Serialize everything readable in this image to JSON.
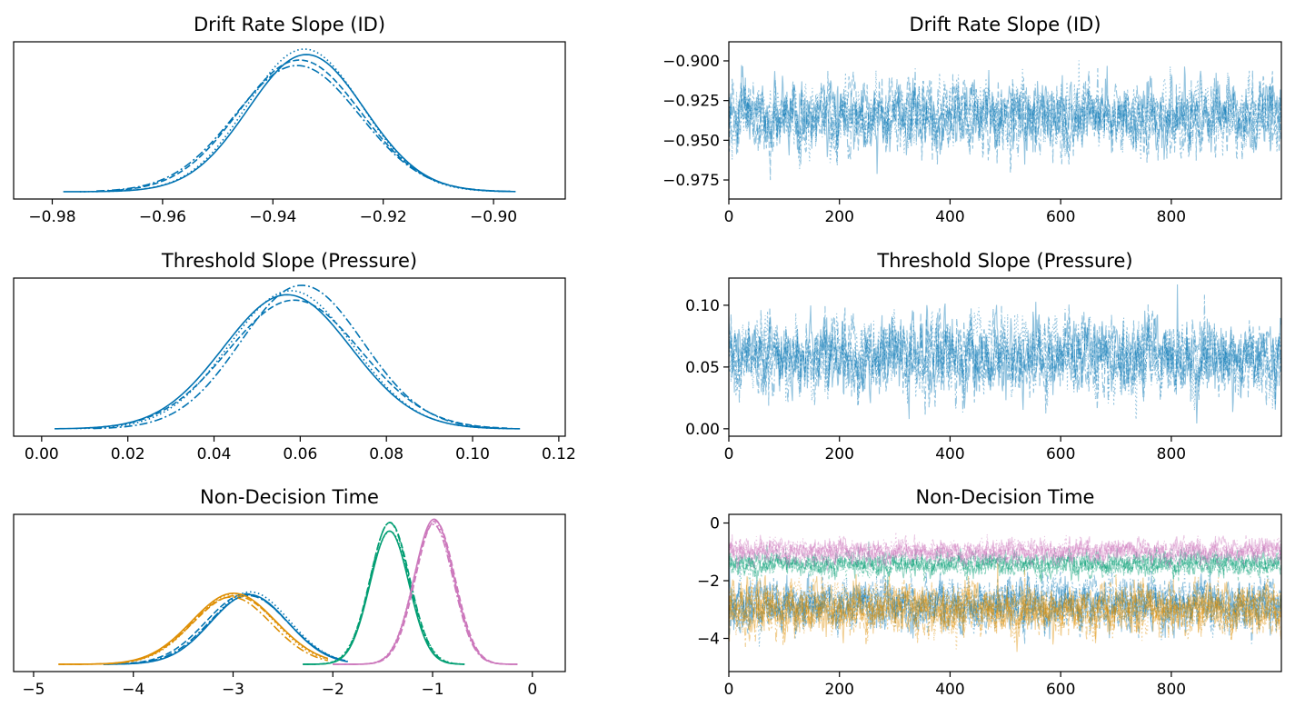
{
  "chart_data": [
    {
      "type": "line",
      "kind": "kde",
      "title": "Drift Rate Slope (ID)",
      "xlim": [
        -0.987,
        -0.887
      ],
      "xticks": [
        -0.98,
        -0.96,
        -0.94,
        -0.92,
        -0.9
      ],
      "xtick_labels": [
        "−0.98",
        "−0.96",
        "−0.94",
        "−0.92",
        "−0.90"
      ],
      "y_axis_visible": false,
      "series": [
        {
          "color": "#0173b2",
          "mean": -0.9345,
          "sd": 0.0105,
          "range": [
            -0.978,
            -0.896
          ],
          "peak_scale": 1.0
        },
        {
          "color": "#0173b2",
          "mean": -0.935,
          "sd": 0.011,
          "range": [
            -0.97,
            -0.897
          ],
          "peak_scale": 0.96
        },
        {
          "color": "#0173b2",
          "mean": -0.934,
          "sd": 0.01,
          "range": [
            -0.975,
            -0.898
          ],
          "peak_scale": 1.04
        },
        {
          "color": "#0173b2",
          "mean": -0.9355,
          "sd": 0.0115,
          "range": [
            -0.972,
            -0.897
          ],
          "peak_scale": 0.92
        }
      ]
    },
    {
      "type": "line",
      "kind": "trace",
      "title": "Drift Rate Slope (ID)",
      "xlim": [
        0,
        999
      ],
      "ylim": [
        -0.987,
        -0.888
      ],
      "xticks": [
        0,
        200,
        400,
        600,
        800
      ],
      "xtick_labels": [
        "0",
        "200",
        "400",
        "600",
        "800"
      ],
      "yticks": [
        -0.975,
        -0.95,
        -0.925,
        -0.9
      ],
      "ytick_labels": [
        "−0.975",
        "−0.950",
        "−0.925",
        "−0.900"
      ],
      "draws": 1000,
      "series": [
        {
          "color": "#0173b2",
          "mean": -0.935,
          "sd": 0.0105,
          "chains": 4
        }
      ]
    },
    {
      "type": "line",
      "kind": "kde",
      "title": "Threshold Slope (Pressure)",
      "xlim": [
        -0.0065,
        0.1215
      ],
      "xticks": [
        0.0,
        0.02,
        0.04,
        0.06,
        0.08,
        0.1,
        0.12
      ],
      "xtick_labels": [
        "0.00",
        "0.02",
        "0.04",
        "0.06",
        "0.08",
        "0.10",
        "0.12"
      ],
      "y_axis_visible": false,
      "series": [
        {
          "color": "#0173b2",
          "mean": 0.0575,
          "sd": 0.015,
          "range": [
            0.003,
            0.111
          ],
          "peak_scale": 1.0
        },
        {
          "color": "#0173b2",
          "mean": 0.058,
          "sd": 0.0155,
          "range": [
            0.01,
            0.108
          ],
          "peak_scale": 0.96
        },
        {
          "color": "#0173b2",
          "mean": 0.057,
          "sd": 0.0148,
          "range": [
            0.008,
            0.11
          ],
          "peak_scale": 1.03
        },
        {
          "color": "#0173b2",
          "mean": 0.06,
          "sd": 0.0145,
          "range": [
            0.012,
            0.106
          ],
          "peak_scale": 1.07
        }
      ]
    },
    {
      "type": "line",
      "kind": "trace",
      "title": "Threshold Slope (Pressure)",
      "xlim": [
        0,
        999
      ],
      "ylim": [
        -0.006,
        0.122
      ],
      "xticks": [
        0,
        200,
        400,
        600,
        800
      ],
      "xtick_labels": [
        "0",
        "200",
        "400",
        "600",
        "800"
      ],
      "yticks": [
        0.0,
        0.05,
        0.1
      ],
      "ytick_labels": [
        "0.00",
        "0.05",
        "0.10"
      ],
      "draws": 1000,
      "series": [
        {
          "color": "#0173b2",
          "mean": 0.058,
          "sd": 0.015,
          "chains": 4
        }
      ]
    },
    {
      "type": "line",
      "kind": "kde",
      "title": "Non-Decision Time",
      "xlim": [
        -5.2,
        0.33
      ],
      "xticks": [
        -5,
        -4,
        -3,
        -2,
        -1,
        0
      ],
      "xtick_labels": [
        "−5",
        "−4",
        "−3",
        "−2",
        "−1",
        "0"
      ],
      "y_axis_visible": false,
      "ypeak": 2.0,
      "series": [
        {
          "color": "#0173b2",
          "mean": -2.85,
          "sd": 0.4,
          "range": [
            -4.3,
            -1.85
          ],
          "peak": 0.98,
          "chains": 4
        },
        {
          "color": "#de8f05",
          "mean": -3.0,
          "sd": 0.41,
          "range": [
            -4.75,
            -2.05
          ],
          "peak": 0.96,
          "chains": 4
        },
        {
          "color": "#029e73",
          "mean": -1.42,
          "sd": 0.2,
          "range": [
            -2.3,
            -0.68
          ],
          "peak": 1.93,
          "chains": 4
        },
        {
          "color": "#cc78bc",
          "mean": -0.98,
          "sd": 0.2,
          "range": [
            -2.0,
            -0.15
          ],
          "peak": 1.98,
          "chains": 4
        }
      ]
    },
    {
      "type": "line",
      "kind": "trace",
      "title": "Non-Decision Time",
      "xlim": [
        0,
        999
      ],
      "ylim": [
        -5.15,
        0.3
      ],
      "xticks": [
        0,
        200,
        400,
        600,
        800
      ],
      "xtick_labels": [
        "0",
        "200",
        "400",
        "600",
        "800"
      ],
      "yticks": [
        -4,
        -2,
        0
      ],
      "ytick_labels": [
        "−4",
        "−2",
        "0"
      ],
      "draws": 1000,
      "series": [
        {
          "color": "#0173b2",
          "mean": -2.85,
          "sd": 0.4,
          "chains": 4
        },
        {
          "color": "#029e73",
          "mean": -1.42,
          "sd": 0.2,
          "chains": 4
        },
        {
          "color": "#cc78bc",
          "mean": -0.98,
          "sd": 0.2,
          "chains": 4
        },
        {
          "color": "#de8f05",
          "mean": -3.0,
          "sd": 0.41,
          "chains": 4
        }
      ]
    }
  ]
}
